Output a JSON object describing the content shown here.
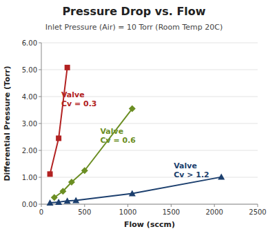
{
  "chart_data": {
    "type": "line",
    "title": "Pressure Drop vs. Flow",
    "subtitle": "Inlet Pressure (Air) = 10 Torr   (Room Temp 20C)",
    "x_label": "Flow (sccm)",
    "y_label": "Differential Pressure (Torr)",
    "xlim": [
      0,
      2500
    ],
    "ylim": [
      0,
      6.0
    ],
    "xticks": [
      0,
      500,
      1000,
      1500,
      2000,
      2500
    ],
    "yticks": [
      {
        "value": 0,
        "label": "0.00"
      },
      {
        "value": 1,
        "label": "1.00"
      },
      {
        "value": 2,
        "label": "2.00"
      },
      {
        "value": 3,
        "label": "3.00"
      },
      {
        "value": 4,
        "label": "4.00"
      },
      {
        "value": 5,
        "label": "5.00"
      },
      {
        "value": 6,
        "label": "6.00"
      }
    ],
    "grid": true,
    "series": [
      {
        "color": "#b22222",
        "marker": "square",
        "x": [
          100,
          200,
          300
        ],
        "values": [
          1.12,
          2.45,
          5.08
        ]
      },
      {
        "color": "#6b8e23",
        "marker": "diamond",
        "x": [
          150,
          250,
          350,
          500,
          1050
        ],
        "values": [
          0.25,
          0.48,
          0.82,
          1.25,
          3.55
        ]
      },
      {
        "color": "#1c3f6e",
        "marker": "triangle",
        "x": [
          100,
          200,
          300,
          400,
          1050,
          2080
        ],
        "values": [
          0.05,
          0.08,
          0.12,
          0.14,
          0.4,
          1.01
        ]
      }
    ],
    "annotations": [
      {
        "text": "Valve\nCv = 0.3",
        "x": 230,
        "y": 3.9,
        "color": "#b22222"
      },
      {
        "text": "Valve\nCv = 0.6",
        "x": 680,
        "y": 2.55,
        "color": "#6b8e23"
      },
      {
        "text": "Valve\nCv > 1.2",
        "x": 1530,
        "y": 1.28,
        "color": "#1c3f6e"
      }
    ]
  }
}
